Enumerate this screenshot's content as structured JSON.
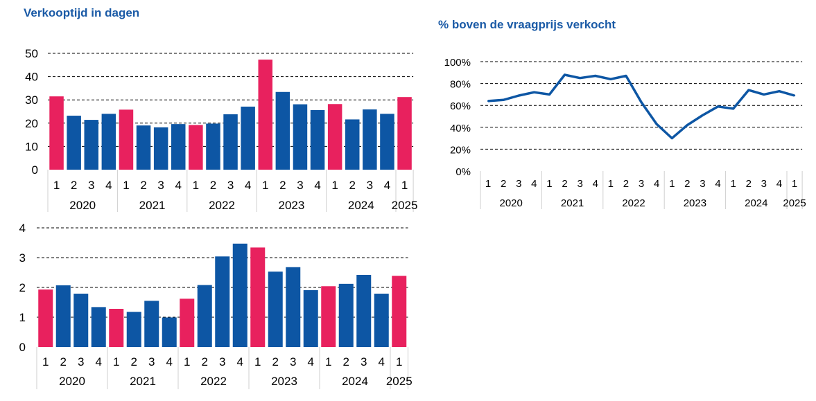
{
  "chart_data": [
    {
      "id": "days",
      "type": "bar",
      "title": "Verkooptijd in dagen",
      "ylim": [
        0,
        50
      ],
      "yticks": [
        0,
        10,
        20,
        30,
        40,
        50
      ],
      "ytick_labels": [
        "0",
        "10",
        "20",
        "30",
        "40",
        "50"
      ],
      "grid": "dashed horizontal",
      "categories": [
        "1",
        "2",
        "3",
        "4",
        "1",
        "2",
        "3",
        "4",
        "1",
        "2",
        "3",
        "4",
        "1",
        "2",
        "3",
        "4",
        "1",
        "2",
        "3",
        "4",
        "1"
      ],
      "years": [
        "2020",
        "2021",
        "2022",
        "2023",
        "2024",
        "2025"
      ],
      "values": [
        31.5,
        23.2,
        21.4,
        24.0,
        25.8,
        19.0,
        18.2,
        19.6,
        19.2,
        19.8,
        23.8,
        27.1,
        47.3,
        33.4,
        28.1,
        25.6,
        28.2,
        21.6,
        25.9,
        24.0,
        31.2
      ],
      "highlight_q1": true
    },
    {
      "id": "pct",
      "type": "line",
      "title": "% boven de vraagprijs verkocht",
      "ylim": [
        0,
        100
      ],
      "yticks": [
        0,
        20,
        40,
        60,
        80,
        100
      ],
      "ytick_labels": [
        "0%",
        "20%",
        "40%",
        "60%",
        "80%",
        "100%"
      ],
      "grid": "dashed horizontal",
      "categories": [
        "1",
        "2",
        "3",
        "4",
        "1",
        "2",
        "3",
        "4",
        "1",
        "2",
        "3",
        "4",
        "1",
        "2",
        "3",
        "4",
        "1",
        "2",
        "3",
        "4",
        "1"
      ],
      "years": [
        "2020",
        "2021",
        "2022",
        "2023",
        "2024",
        "2025"
      ],
      "values": [
        64,
        65,
        69,
        72,
        70,
        88,
        85,
        87,
        84,
        87,
        63,
        43,
        30,
        42,
        51,
        59,
        57,
        74,
        70,
        73,
        69
      ]
    },
    {
      "id": "third",
      "type": "bar",
      "title": "",
      "ylim": [
        0,
        4
      ],
      "yticks": [
        0,
        1,
        2,
        3,
        4
      ],
      "ytick_labels": [
        "0",
        "1",
        "2",
        "3",
        "4"
      ],
      "grid": "dashed horizontal",
      "categories": [
        "1",
        "2",
        "3",
        "4",
        "1",
        "2",
        "3",
        "4",
        "1",
        "2",
        "3",
        "4",
        "1",
        "2",
        "3",
        "4",
        "1",
        "2",
        "3",
        "4",
        "1"
      ],
      "years": [
        "2020",
        "2021",
        "2022",
        "2023",
        "2024",
        "2025"
      ],
      "values": [
        1.93,
        2.07,
        1.79,
        1.34,
        1.28,
        1.18,
        1.55,
        0.99,
        1.62,
        2.08,
        3.04,
        3.47,
        3.34,
        2.53,
        2.68,
        1.91,
        2.04,
        2.12,
        2.42,
        1.79,
        2.39
      ],
      "highlight_q1": true
    }
  ],
  "colors": {
    "q1": "#e8215e",
    "other": "#0d56a4",
    "line": "#0d56a4",
    "title": "#1a5aa6",
    "grid": "#000000"
  }
}
